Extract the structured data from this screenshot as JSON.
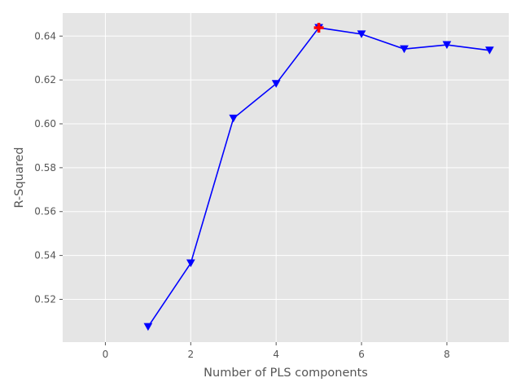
{
  "chart_data": {
    "type": "line",
    "title": "",
    "xlabel": "Number of PLS components",
    "ylabel": "R-Squared",
    "xlim": [
      -1,
      9.45
    ],
    "ylim": [
      0.5005,
      0.6505
    ],
    "xticks": [
      0,
      2,
      4,
      6,
      8
    ],
    "yticks": [
      0.52,
      0.54,
      0.56,
      0.58,
      0.6,
      0.62,
      0.64
    ],
    "ytick_labels": [
      "0.52",
      "0.54",
      "0.56",
      "0.58",
      "0.60",
      "0.62",
      "0.64"
    ],
    "grid": true,
    "series": [
      {
        "x": [
          1,
          2,
          3,
          4,
          5,
          6,
          7,
          8,
          9
        ],
        "y": [
          0.5075,
          0.5365,
          0.6025,
          0.6183,
          0.6438,
          0.6409,
          0.6341,
          0.636,
          0.6335
        ],
        "color": "#0000ff",
        "marker": "triangle-down"
      }
    ],
    "highlight": {
      "x": 5,
      "y": 0.6438,
      "color": "#ff0000",
      "marker": "plus"
    },
    "colors": {
      "background": "#e5e5e5",
      "grid": "#ffffff"
    }
  }
}
